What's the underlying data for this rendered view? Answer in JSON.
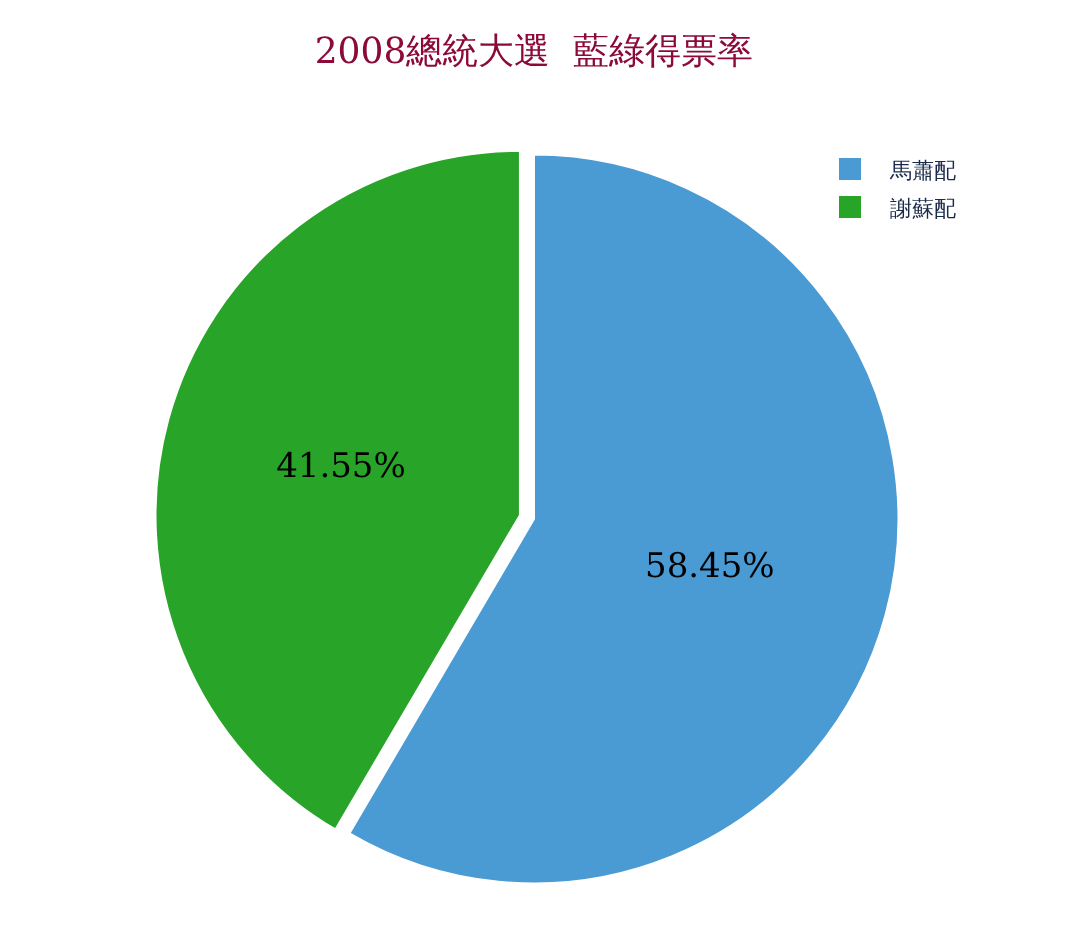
{
  "chart_data": {
    "type": "pie",
    "title": "2008總統大選  藍綠得票率",
    "categories": [
      "馬蕭配",
      "謝蘇配"
    ],
    "values": [
      58.45,
      41.55
    ],
    "colors": [
      "#4a9ad4",
      "#28a428"
    ],
    "value_labels": [
      "58.45%",
      "41.55%"
    ],
    "legend": "top right"
  }
}
